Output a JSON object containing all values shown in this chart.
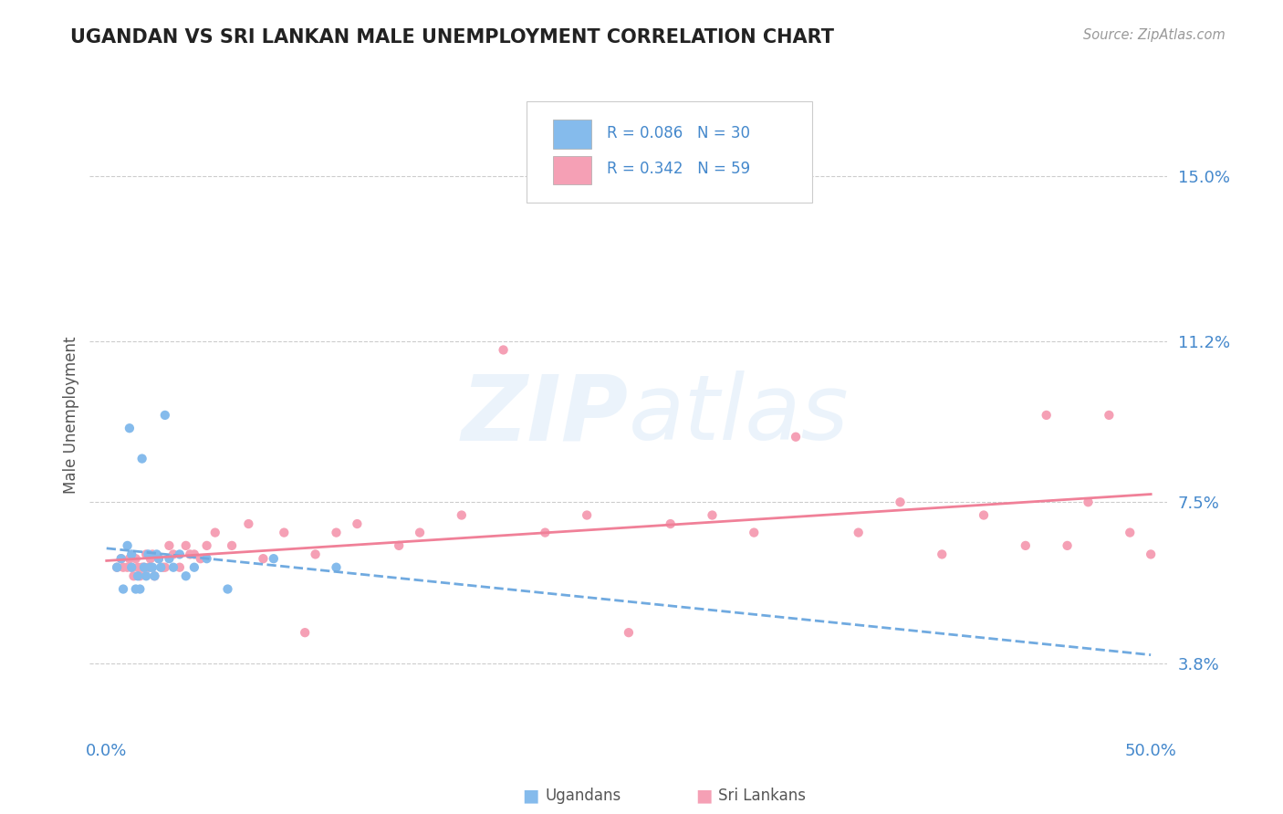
{
  "title": "UGANDAN VS SRI LANKAN MALE UNEMPLOYMENT CORRELATION CHART",
  "source": "Source: ZipAtlas.com",
  "xlabel": "",
  "ylabel": "Male Unemployment",
  "xlim": [
    -0.008,
    0.508
  ],
  "ylim": [
    0.022,
    0.168
  ],
  "yticks": [
    0.038,
    0.075,
    0.112,
    0.15
  ],
  "ytick_labels": [
    "3.8%",
    "7.5%",
    "11.2%",
    "15.0%"
  ],
  "xticks": [
    0.0,
    0.5
  ],
  "xtick_labels": [
    "0.0%",
    "50.0%"
  ],
  "ugandan_R": 0.086,
  "ugandan_N": 30,
  "srilankan_R": 0.342,
  "srilankan_N": 59,
  "ugandan_color": "#85bbec",
  "srilankan_color": "#f5a0b5",
  "ugandan_line_color": "#70aae0",
  "srilankan_line_color": "#f08098",
  "background_color": "#ffffff",
  "grid_color": "#cccccc",
  "title_color": "#222222",
  "axis_label_color": "#555555",
  "tick_label_color": "#4488cc",
  "legend_value_color": "#4488cc",
  "watermark": "ZIPatlas",
  "ugandan_x": [
    0.005,
    0.007,
    0.008,
    0.01,
    0.011,
    0.012,
    0.012,
    0.014,
    0.015,
    0.016,
    0.017,
    0.018,
    0.019,
    0.02,
    0.021,
    0.022,
    0.023,
    0.024,
    0.025,
    0.026,
    0.028,
    0.03,
    0.032,
    0.035,
    0.038,
    0.042,
    0.048,
    0.058,
    0.08,
    0.11
  ],
  "ugandan_y": [
    0.06,
    0.062,
    0.055,
    0.065,
    0.092,
    0.06,
    0.063,
    0.055,
    0.058,
    0.055,
    0.085,
    0.06,
    0.058,
    0.063,
    0.06,
    0.06,
    0.058,
    0.063,
    0.062,
    0.06,
    0.095,
    0.062,
    0.06,
    0.063,
    0.058,
    0.06,
    0.062,
    0.055,
    0.062,
    0.06
  ],
  "srilankan_x": [
    0.005,
    0.007,
    0.008,
    0.01,
    0.011,
    0.012,
    0.013,
    0.014,
    0.015,
    0.016,
    0.017,
    0.018,
    0.019,
    0.02,
    0.021,
    0.022,
    0.023,
    0.025,
    0.027,
    0.028,
    0.03,
    0.032,
    0.035,
    0.038,
    0.04,
    0.042,
    0.045,
    0.048,
    0.052,
    0.06,
    0.068,
    0.075,
    0.085,
    0.095,
    0.1,
    0.11,
    0.12,
    0.14,
    0.15,
    0.17,
    0.19,
    0.21,
    0.23,
    0.25,
    0.27,
    0.29,
    0.31,
    0.33,
    0.36,
    0.38,
    0.4,
    0.42,
    0.44,
    0.45,
    0.46,
    0.47,
    0.48,
    0.49,
    0.5
  ],
  "srilankan_y": [
    0.06,
    0.062,
    0.06,
    0.06,
    0.062,
    0.06,
    0.058,
    0.062,
    0.06,
    0.058,
    0.06,
    0.06,
    0.063,
    0.06,
    0.062,
    0.063,
    0.058,
    0.062,
    0.06,
    0.06,
    0.065,
    0.063,
    0.06,
    0.065,
    0.063,
    0.063,
    0.062,
    0.065,
    0.068,
    0.065,
    0.07,
    0.062,
    0.068,
    0.045,
    0.063,
    0.068,
    0.07,
    0.065,
    0.068,
    0.072,
    0.11,
    0.068,
    0.072,
    0.045,
    0.07,
    0.072,
    0.068,
    0.09,
    0.068,
    0.075,
    0.063,
    0.072,
    0.065,
    0.095,
    0.065,
    0.075,
    0.095,
    0.068,
    0.063
  ]
}
